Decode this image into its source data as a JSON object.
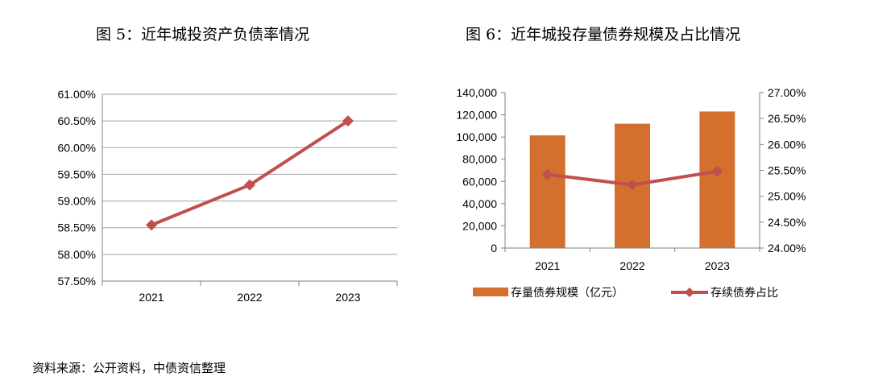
{
  "titles": {
    "left": "图 5：近年城投资产负债率情况",
    "right": "图 6：近年城投存量债券规模及占比情况"
  },
  "source": "资料来源：公开资料，中债资信整理",
  "colors": {
    "line": "#c0504d",
    "bar": "#d4702e",
    "grid": "#a0a0a0",
    "axis": "#808080"
  },
  "chart_data": [
    {
      "type": "line",
      "title": "图 5：近年城投资产负债率情况",
      "categories": [
        "2021",
        "2022",
        "2023"
      ],
      "series": [
        {
          "values": [
            58.55,
            59.3,
            60.5
          ]
        }
      ],
      "ylim": [
        57.5,
        61.0
      ],
      "yticks": [
        "57.50%",
        "58.00%",
        "58.50%",
        "59.00%",
        "59.50%",
        "60.00%",
        "60.50%",
        "61.00%"
      ],
      "grid": true,
      "legend": "none"
    },
    {
      "type": "bar",
      "title": "图 6：近年城投存量债券规模及占比情况",
      "categories": [
        "2021",
        "2022",
        "2023"
      ],
      "series": [
        {
          "name": "存量债券规模（亿元）",
          "type": "bar",
          "axis": "left",
          "values": [
            101500,
            112000,
            123000
          ]
        },
        {
          "name": "存续债券占比",
          "type": "line",
          "axis": "right",
          "values": [
            25.42,
            25.22,
            25.48
          ]
        }
      ],
      "ylim": [
        0,
        140000
      ],
      "yticks": [
        "0",
        "20,000",
        "40,000",
        "60,000",
        "80,000",
        "100,000",
        "120,000",
        "140,000"
      ],
      "y2lim": [
        24.0,
        27.0
      ],
      "y2ticks": [
        "24.00%",
        "24.50%",
        "25.00%",
        "25.50%",
        "26.00%",
        "26.50%",
        "27.00%"
      ],
      "grid": false,
      "legend": "bottom"
    }
  ]
}
